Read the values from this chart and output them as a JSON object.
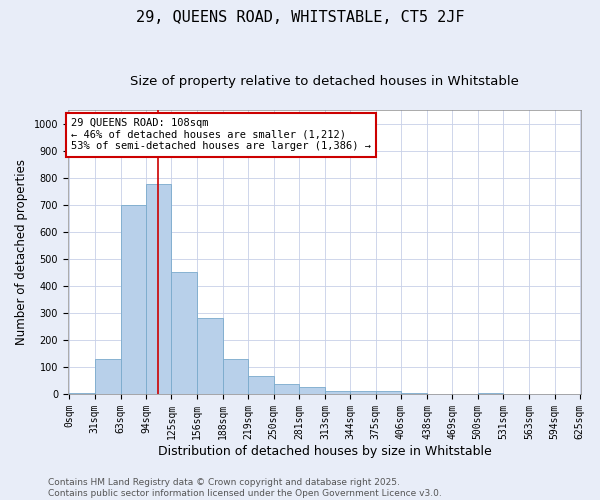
{
  "title": "29, QUEENS ROAD, WHITSTABLE, CT5 2JF",
  "subtitle": "Size of property relative to detached houses in Whitstable",
  "xlabel": "Distribution of detached houses by size in Whitstable",
  "ylabel": "Number of detached properties",
  "bin_edges": [
    0,
    31,
    63,
    94,
    125,
    156,
    188,
    219,
    250,
    281,
    313,
    344,
    375,
    406,
    438,
    469,
    500,
    531,
    563,
    594,
    625
  ],
  "counts": [
    5,
    130,
    700,
    775,
    450,
    280,
    130,
    68,
    38,
    25,
    12,
    12,
    10,
    5,
    0,
    0,
    5,
    0,
    0,
    0
  ],
  "bar_color": "#b8d0ea",
  "bar_edge_color": "#7aaacc",
  "vline_x": 108,
  "vline_color": "#cc0000",
  "annotation_text": "29 QUEENS ROAD: 108sqm\n← 46% of detached houses are smaller (1,212)\n53% of semi-detached houses are larger (1,386) →",
  "annotation_box_color": "white",
  "annotation_box_edge_color": "#cc0000",
  "ylim": [
    0,
    1050
  ],
  "yticks": [
    0,
    100,
    200,
    300,
    400,
    500,
    600,
    700,
    800,
    900,
    1000
  ],
  "background_color": "#e8edf8",
  "plot_background_color": "white",
  "grid_color": "#c8d0e8",
  "footer_line1": "Contains HM Land Registry data © Crown copyright and database right 2025.",
  "footer_line2": "Contains public sector information licensed under the Open Government Licence v3.0.",
  "title_fontsize": 11,
  "subtitle_fontsize": 9.5,
  "xlabel_fontsize": 9,
  "ylabel_fontsize": 8.5,
  "tick_fontsize": 7,
  "annotation_fontsize": 7.5,
  "footer_fontsize": 6.5
}
